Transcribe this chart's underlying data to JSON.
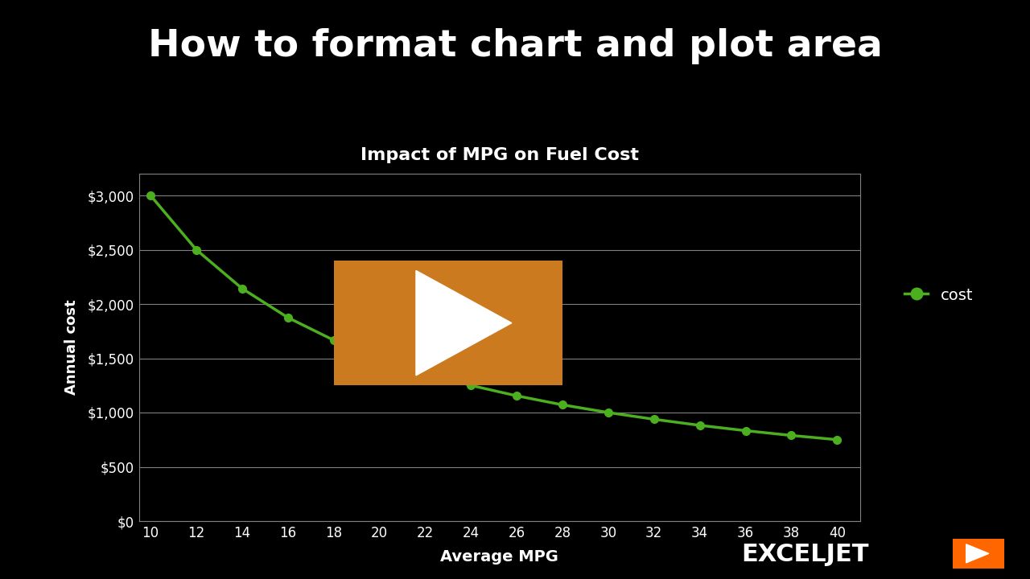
{
  "title": "How to format chart and plot area",
  "chart_title": "Impact of MPG on Fuel Cost",
  "xlabel": "Average MPG",
  "ylabel": "Annual cost",
  "legend_label": "cost",
  "background_color": "#000000",
  "chart_bg_color": "#000000",
  "line_color": "#4CAF20",
  "marker_color": "#4CAF20",
  "grid_color": "#808080",
  "text_color": "#ffffff",
  "mpg": [
    10,
    12,
    14,
    16,
    18,
    20,
    22,
    24,
    26,
    28,
    30,
    32,
    34,
    36,
    38,
    40
  ],
  "cost": [
    3000,
    2500,
    2143,
    1875,
    1667,
    1500,
    1364,
    1250,
    1154,
    1071,
    1000,
    938,
    882,
    833,
    789,
    750
  ],
  "ylim": [
    0,
    3200
  ],
  "xlim": [
    9.5,
    41
  ],
  "yticks": [
    0,
    500,
    1000,
    1500,
    2000,
    2500,
    3000
  ],
  "ytick_labels": [
    "$0",
    "$500",
    "$1,000",
    "$1,500",
    "$2,000",
    "$2,500",
    "$3,000"
  ],
  "xticks": [
    10,
    12,
    14,
    16,
    18,
    20,
    22,
    24,
    26,
    28,
    30,
    32,
    34,
    36,
    38,
    40
  ],
  "play_rect_xmin": 18,
  "play_rect_xmax": 28,
  "play_rect_ymin": 1250,
  "play_rect_ymax": 2400,
  "play_button_color": "#CC7A1F",
  "exceljet_color": "#FF6600"
}
